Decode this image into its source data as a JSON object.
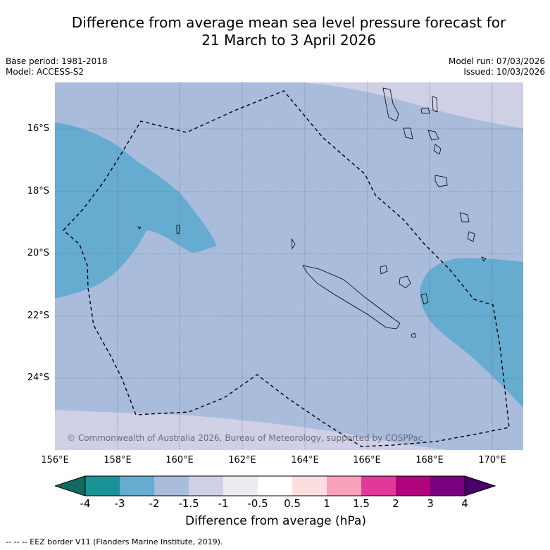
{
  "title_line1": "Difference from average mean sea level pressure forecast for",
  "title_line2": "21 March to 3 April 2026",
  "meta_left": [
    "Base period: 1981-2018",
    "Model: ACCESS-S2"
  ],
  "meta_right": [
    "Model run: 07/03/2026",
    "Issued: 10/03/2026"
  ],
  "lat_labels": [
    "16°S",
    "18°S",
    "20°S",
    "22°S",
    "24°S"
  ],
  "lon_labels": [
    "156°E",
    "158°E",
    "160°E",
    "162°E",
    "164°E",
    "166°E",
    "168°E",
    "170°E"
  ],
  "copyright": "© Commonwealth of Australia 2026, Bureau of Meteorology, supported by COSPPac",
  "colorbar": {
    "ticks": [
      "-4",
      "-3",
      "-2",
      "-1.5",
      "-1",
      "-0.5",
      "0.5",
      "1",
      "1.5",
      "2",
      "3",
      "4"
    ],
    "colors": [
      "#1a9296",
      "#66abd0",
      "#a9bcdc",
      "#cfd0e6",
      "#ecebf1",
      "#ffffff",
      "#fddedf",
      "#f9a0ba",
      "#e0399a",
      "#b1047c",
      "#7a017d"
    ],
    "under_color": "#0f6b5e",
    "over_color": "#4a0068",
    "label": "Difference from average (hPa)"
  },
  "footer": "--  --  -- EEZ border V11 (Flanders Marine Institute, 2019).",
  "colors": {
    "background": "#a9bcdc",
    "low": "#66abd0",
    "lighter": "#cfd0e6",
    "grid": "#5f6a7a"
  }
}
